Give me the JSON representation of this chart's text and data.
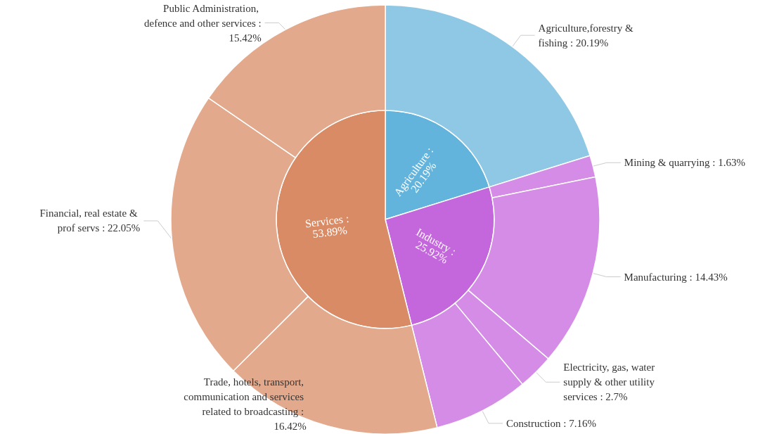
{
  "chart_data": [
    {
      "type": "pie",
      "legend": false,
      "categories": [
        "Agriculture",
        "Industry",
        "Services"
      ],
      "values": [
        20.19,
        25.92,
        53.89
      ],
      "value_labels": [
        ": 20.19%",
        ": 25.92%",
        ": 53.89%"
      ],
      "colors": [
        "#62b4dc",
        "#c466dc",
        "#d98b66"
      ]
    },
    {
      "type": "donut",
      "legend": false,
      "categories": [
        "Agriculture,forestry & fishing",
        "Mining & quarrying",
        "Manufacturing",
        "Electricity, gas, water supply & other utility services",
        "Construction",
        "Trade, hotels, transport, communication and services related to broadcasting",
        "Financial, real estate & prof servs",
        "Public Administration, defence and other services"
      ],
      "values": [
        20.19,
        1.63,
        14.43,
        2.7,
        7.16,
        16.42,
        22.05,
        15.42
      ],
      "value_labels": [
        ": 20.19%",
        ": 1.63%",
        ": 14.43%",
        ": 2.7%",
        ": 7.16%",
        ": 16.42%",
        ": 22.05%",
        ": 15.42%"
      ],
      "colors": [
        "#8fc8e5",
        "#d48ce6",
        "#d48ce6",
        "#d48ce6",
        "#d48ce6",
        "#e3a98c",
        "#e3a98c",
        "#e3a98c"
      ]
    }
  ]
}
